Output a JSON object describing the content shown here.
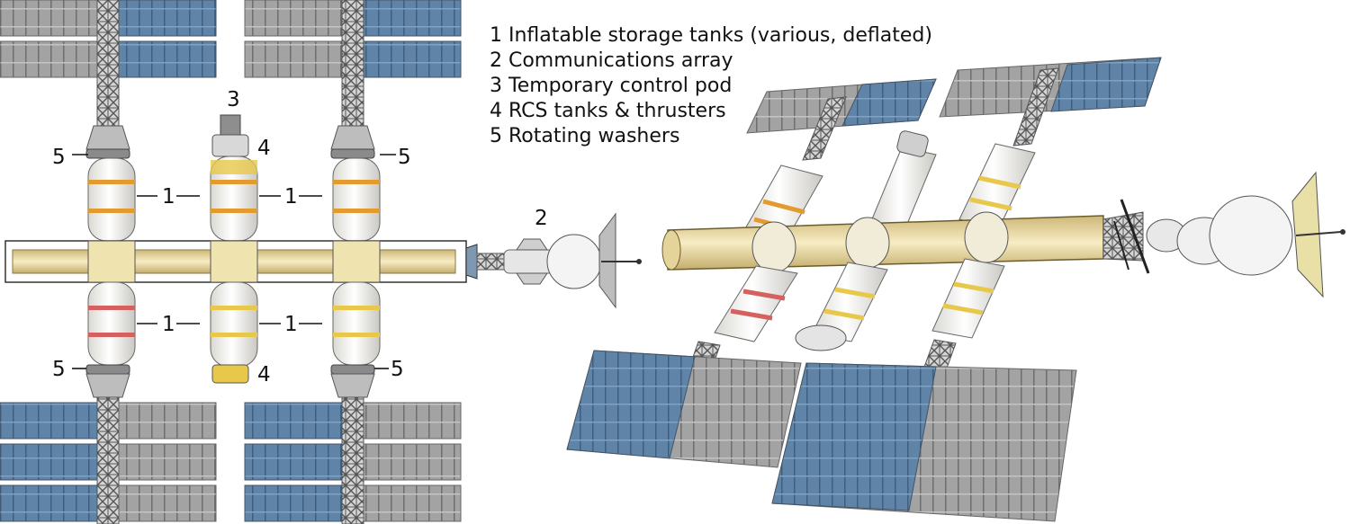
{
  "legend": {
    "items": [
      "1 Inflatable storage tanks (various, deflated)",
      "2 Communications array",
      "3 Temporary control pod",
      "4 RCS tanks & thrusters",
      "5 Rotating washers"
    ]
  },
  "callouts": {
    "tank": "1",
    "comms": "2",
    "control_pod": "3",
    "rcs": "4",
    "washer": "5"
  },
  "colors": {
    "solar_blue": "#5f84a8",
    "solar_grey": "#9a9a9a",
    "tank_white": "#f2f1ec",
    "stripe_orange": "#e39a2e",
    "stripe_red": "#d66060",
    "stripe_yellow": "#e8c84a",
    "cargo_gold": "#e9d9a4",
    "truss": "#555555"
  }
}
